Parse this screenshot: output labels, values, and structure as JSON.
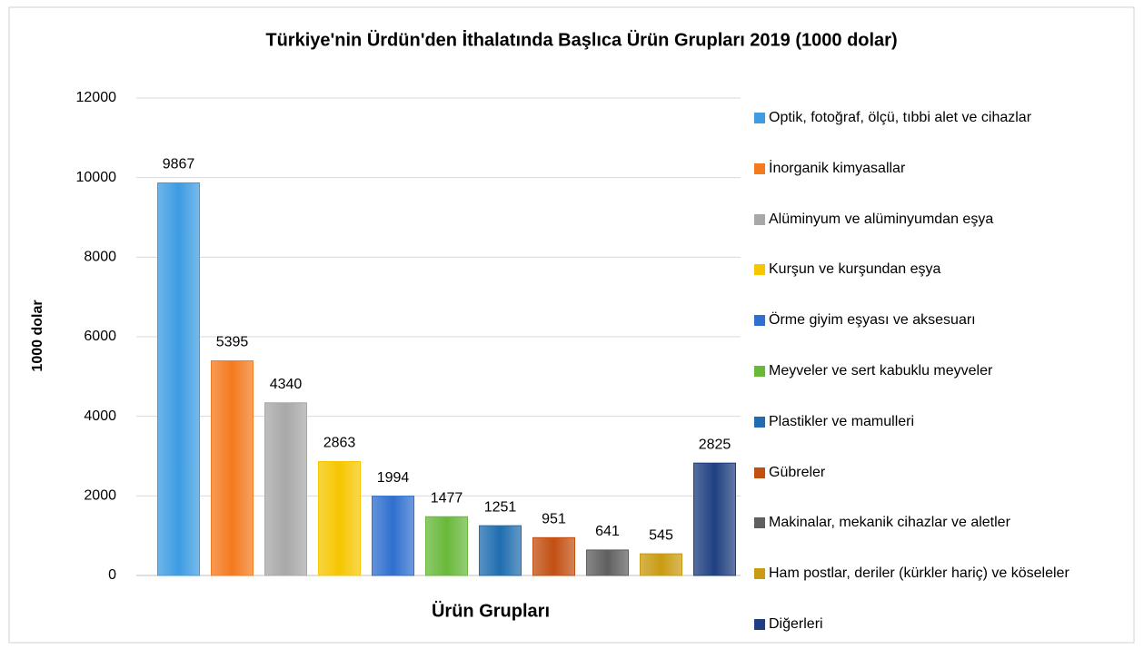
{
  "chart_data": {
    "type": "bar",
    "title": "Türkiye'nin Ürdün'den  İthalatında Başlıca Ürün Grupları 2019 (1000 dolar)",
    "x_label": "Ürün Grupları",
    "y_label": "1000 dolar",
    "categories": [
      "Optik, fotoğraf, ölçü, tıbbi alet ve cihazlar",
      "İnorganik kimyasallar",
      "Alüminyum ve alüminyumdan eşya",
      "Kurşun ve kurşundan eşya",
      "Örme giyim eşyası ve aksesuarı",
      "Meyveler ve sert kabuklu meyveler",
      "Plastikler ve mamulleri",
      "Gübreler",
      "Makinalar, mekanik cihazlar ve aletler",
      "Ham postlar, deriler (kürkler hariç) ve köseleler",
      "Diğerleri"
    ],
    "values": [
      9867,
      5395,
      4340,
      2863,
      1994,
      1477,
      1251,
      951,
      641,
      545,
      2825
    ],
    "colors": [
      "#3d9ce2",
      "#f47a1e",
      "#a8a8a8",
      "#f6c600",
      "#2f6fcf",
      "#68b83a",
      "#1f6db0",
      "#c24f12",
      "#5f5f5f",
      "#c99b12",
      "#1f3f80"
    ],
    "ylim": [
      0,
      12000
    ],
    "yticks": [
      0,
      2000,
      4000,
      6000,
      8000,
      10000,
      12000
    ],
    "grid": true,
    "legend": "right"
  }
}
